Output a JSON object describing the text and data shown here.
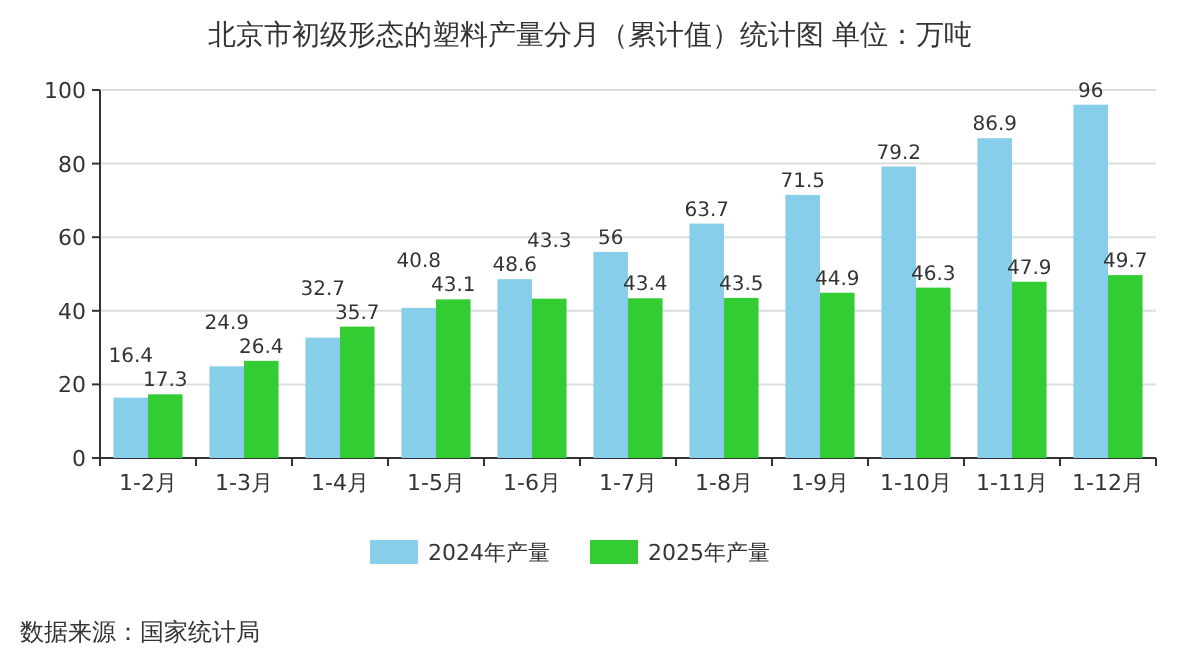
{
  "chart_data": {
    "type": "bar",
    "title": "北京市初级形态的塑料产量分月（累计值）统计图 单位：万吨",
    "categories": [
      "1-2月",
      "1-3月",
      "1-4月",
      "1-5月",
      "1-6月",
      "1-7月",
      "1-8月",
      "1-9月",
      "1-10月",
      "1-11月",
      "1-12月"
    ],
    "series": [
      {
        "name": "2024年产量",
        "color": "#87ceeb",
        "values": [
          16.4,
          24.9,
          32.7,
          40.8,
          48.6,
          56,
          63.7,
          71.5,
          79.2,
          86.9,
          96
        ]
      },
      {
        "name": "2025年产量",
        "color": "#33cc33",
        "values": [
          17.3,
          26.4,
          35.7,
          43.1,
          43.3,
          43.4,
          43.5,
          44.9,
          46.3,
          47.9,
          49.7
        ]
      }
    ],
    "ylim": [
      0,
      100
    ],
    "yticks": [
      0,
      20,
      40,
      60,
      80,
      100
    ],
    "grid": "y",
    "legend": "bottom",
    "data_labels": true,
    "annotations": [
      "数据来源：国家统计局"
    ]
  }
}
